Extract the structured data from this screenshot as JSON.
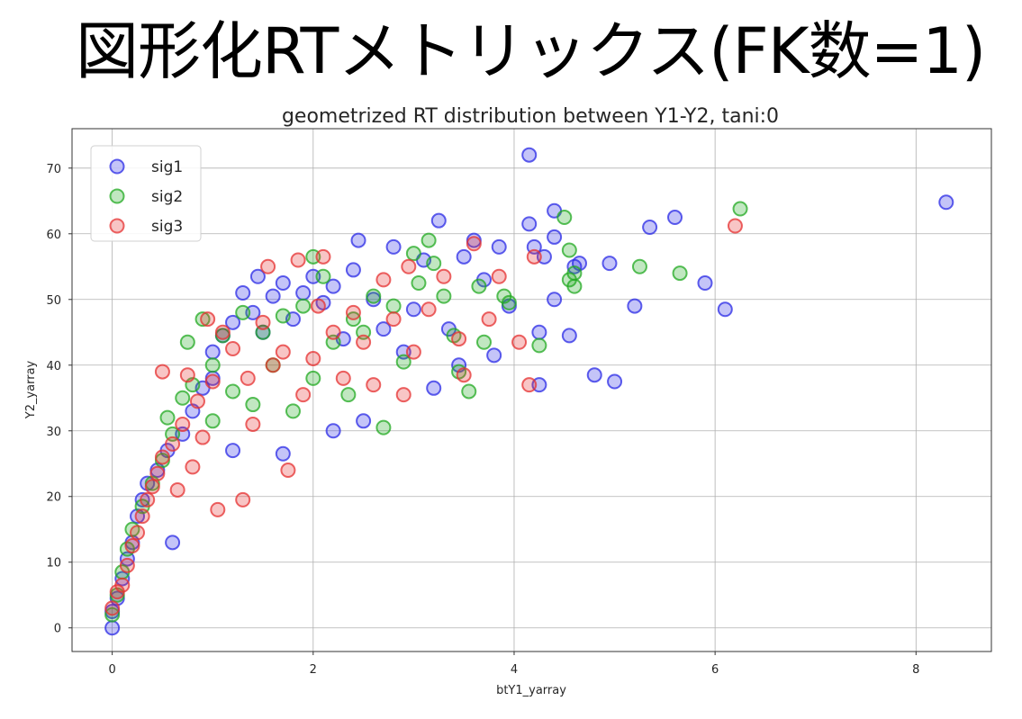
{
  "slide": {
    "title": "図形化RTメトリックス(FK数=1)"
  },
  "chart_data": {
    "type": "scatter",
    "title": "geometrized RT distribution between Y1-Y2, tani:0",
    "xlabel": "btY1_yarray",
    "ylabel": "Y2_yarray",
    "xlim": [
      -0.4,
      8.75
    ],
    "ylim": [
      -3.6,
      76.0
    ],
    "xticks": [
      0,
      2,
      4,
      6,
      8
    ],
    "yticks": [
      0,
      10,
      20,
      30,
      40,
      50,
      60,
      70
    ],
    "grid": true,
    "legend_position": "top-left",
    "series": [
      {
        "name": "sig1",
        "color": "#2a2ae6",
        "points": [
          [
            0.0,
            0.0
          ],
          [
            0.0,
            2.5
          ],
          [
            0.05,
            4.5
          ],
          [
            0.1,
            7.5
          ],
          [
            0.15,
            10.5
          ],
          [
            0.2,
            13.0
          ],
          [
            0.25,
            17.0
          ],
          [
            0.3,
            19.5
          ],
          [
            0.35,
            22.0
          ],
          [
            0.45,
            24.0
          ],
          [
            0.55,
            27.0
          ],
          [
            0.6,
            13.0
          ],
          [
            0.7,
            29.5
          ],
          [
            0.8,
            33.0
          ],
          [
            0.9,
            36.5
          ],
          [
            1.0,
            38.0
          ],
          [
            1.0,
            42.0
          ],
          [
            1.1,
            44.5
          ],
          [
            1.2,
            46.5
          ],
          [
            1.2,
            27.0
          ],
          [
            1.3,
            51.0
          ],
          [
            1.4,
            48.0
          ],
          [
            1.45,
            53.5
          ],
          [
            1.5,
            45.0
          ],
          [
            1.6,
            50.5
          ],
          [
            1.7,
            52.5
          ],
          [
            1.7,
            26.5
          ],
          [
            1.8,
            47.0
          ],
          [
            1.9,
            51.0
          ],
          [
            2.0,
            53.5
          ],
          [
            2.1,
            49.5
          ],
          [
            2.2,
            52.0
          ],
          [
            2.2,
            30.0
          ],
          [
            2.3,
            44.0
          ],
          [
            2.4,
            54.5
          ],
          [
            2.45,
            59.0
          ],
          [
            2.5,
            31.5
          ],
          [
            2.6,
            50.0
          ],
          [
            2.7,
            45.5
          ],
          [
            2.8,
            58.0
          ],
          [
            2.9,
            42.0
          ],
          [
            3.0,
            48.5
          ],
          [
            3.1,
            56.0
          ],
          [
            3.2,
            36.5
          ],
          [
            3.25,
            62.0
          ],
          [
            3.35,
            45.5
          ],
          [
            3.45,
            40.0
          ],
          [
            3.5,
            56.5
          ],
          [
            3.6,
            59.0
          ],
          [
            3.7,
            53.0
          ],
          [
            3.8,
            41.5
          ],
          [
            3.85,
            58.0
          ],
          [
            3.95,
            49.0
          ],
          [
            4.15,
            61.5
          ],
          [
            4.15,
            72.0
          ],
          [
            4.2,
            58.0
          ],
          [
            4.25,
            45.0
          ],
          [
            4.25,
            37.0
          ],
          [
            4.3,
            56.5
          ],
          [
            4.4,
            59.5
          ],
          [
            4.4,
            63.5
          ],
          [
            4.4,
            50.0
          ],
          [
            4.55,
            44.5
          ],
          [
            4.6,
            55.0
          ],
          [
            4.65,
            55.5
          ],
          [
            4.8,
            38.5
          ],
          [
            4.95,
            55.5
          ],
          [
            5.0,
            37.5
          ],
          [
            5.2,
            49.0
          ],
          [
            5.35,
            61.0
          ],
          [
            5.6,
            62.5
          ],
          [
            5.9,
            52.5
          ],
          [
            6.1,
            48.5
          ],
          [
            8.3,
            64.8
          ]
        ]
      },
      {
        "name": "sig2",
        "color": "#22aa22",
        "points": [
          [
            0.0,
            2.0
          ],
          [
            0.05,
            5.0
          ],
          [
            0.1,
            8.5
          ],
          [
            0.15,
            12.0
          ],
          [
            0.2,
            15.0
          ],
          [
            0.3,
            18.5
          ],
          [
            0.4,
            22.0
          ],
          [
            0.5,
            25.5
          ],
          [
            0.55,
            32.0
          ],
          [
            0.6,
            29.5
          ],
          [
            0.7,
            35.0
          ],
          [
            0.75,
            43.5
          ],
          [
            0.8,
            37.0
          ],
          [
            0.9,
            47.0
          ],
          [
            1.0,
            40.0
          ],
          [
            1.0,
            31.5
          ],
          [
            1.1,
            44.5
          ],
          [
            1.2,
            36.0
          ],
          [
            1.3,
            48.0
          ],
          [
            1.4,
            34.0
          ],
          [
            1.5,
            45.0
          ],
          [
            1.6,
            40.0
          ],
          [
            1.7,
            47.5
          ],
          [
            1.8,
            33.0
          ],
          [
            1.9,
            49.0
          ],
          [
            2.0,
            56.5
          ],
          [
            2.0,
            38.0
          ],
          [
            2.1,
            53.5
          ],
          [
            2.2,
            43.5
          ],
          [
            2.35,
            35.5
          ],
          [
            2.4,
            47.0
          ],
          [
            2.5,
            45.0
          ],
          [
            2.6,
            50.5
          ],
          [
            2.7,
            30.5
          ],
          [
            2.8,
            49.0
          ],
          [
            2.9,
            40.5
          ],
          [
            3.0,
            57.0
          ],
          [
            3.05,
            52.5
          ],
          [
            3.15,
            59.0
          ],
          [
            3.2,
            55.5
          ],
          [
            3.3,
            50.5
          ],
          [
            3.4,
            44.5
          ],
          [
            3.45,
            39.0
          ],
          [
            3.55,
            36.0
          ],
          [
            3.65,
            52.0
          ],
          [
            3.7,
            43.5
          ],
          [
            3.9,
            50.5
          ],
          [
            3.95,
            49.5
          ],
          [
            4.25,
            43.0
          ],
          [
            4.5,
            62.5
          ],
          [
            4.55,
            57.5
          ],
          [
            4.55,
            53.0
          ],
          [
            4.6,
            52.0
          ],
          [
            4.6,
            54.0
          ],
          [
            5.25,
            55.0
          ],
          [
            5.65,
            54.0
          ],
          [
            6.25,
            63.8
          ]
        ]
      },
      {
        "name": "sig3",
        "color": "#e63030",
        "points": [
          [
            0.0,
            3.0
          ],
          [
            0.05,
            5.5
          ],
          [
            0.1,
            6.5
          ],
          [
            0.15,
            9.5
          ],
          [
            0.2,
            12.5
          ],
          [
            0.25,
            14.5
          ],
          [
            0.3,
            17.0
          ],
          [
            0.35,
            19.5
          ],
          [
            0.4,
            21.5
          ],
          [
            0.45,
            23.5
          ],
          [
            0.5,
            39.0
          ],
          [
            0.5,
            26.0
          ],
          [
            0.6,
            28.0
          ],
          [
            0.65,
            21.0
          ],
          [
            0.7,
            31.0
          ],
          [
            0.75,
            38.5
          ],
          [
            0.8,
            24.5
          ],
          [
            0.85,
            34.5
          ],
          [
            0.9,
            29.0
          ],
          [
            0.95,
            47.0
          ],
          [
            1.0,
            37.5
          ],
          [
            1.05,
            18.0
          ],
          [
            1.1,
            45.0
          ],
          [
            1.2,
            42.5
          ],
          [
            1.3,
            19.5
          ],
          [
            1.35,
            38.0
          ],
          [
            1.4,
            31.0
          ],
          [
            1.5,
            46.5
          ],
          [
            1.55,
            55.0
          ],
          [
            1.6,
            40.0
          ],
          [
            1.7,
            42.0
          ],
          [
            1.75,
            24.0
          ],
          [
            1.85,
            56.0
          ],
          [
            1.9,
            35.5
          ],
          [
            2.0,
            41.0
          ],
          [
            2.05,
            49.0
          ],
          [
            2.1,
            56.5
          ],
          [
            2.2,
            45.0
          ],
          [
            2.3,
            38.0
          ],
          [
            2.4,
            48.0
          ],
          [
            2.5,
            43.5
          ],
          [
            2.6,
            37.0
          ],
          [
            2.7,
            53.0
          ],
          [
            2.8,
            47.0
          ],
          [
            2.9,
            35.5
          ],
          [
            2.95,
            55.0
          ],
          [
            3.0,
            42.0
          ],
          [
            3.15,
            48.5
          ],
          [
            3.3,
            53.5
          ],
          [
            3.45,
            44.0
          ],
          [
            3.5,
            38.5
          ],
          [
            3.6,
            58.5
          ],
          [
            3.75,
            47.0
          ],
          [
            3.85,
            53.5
          ],
          [
            4.05,
            43.5
          ],
          [
            4.15,
            37.0
          ],
          [
            4.2,
            56.5
          ],
          [
            6.2,
            61.2
          ]
        ]
      }
    ]
  }
}
